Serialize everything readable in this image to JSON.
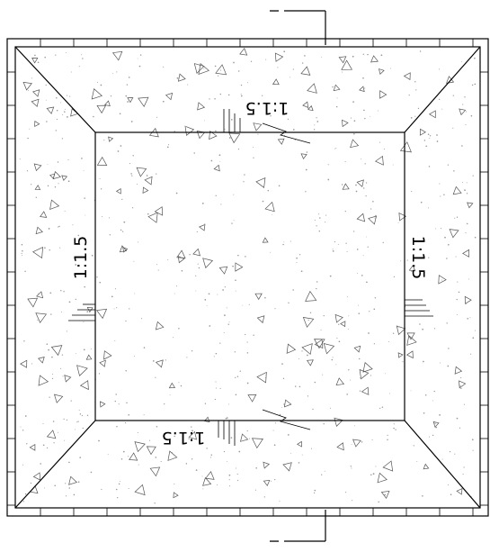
{
  "slope_labels": {
    "top": "1:1.5",
    "bottom": "1:1.5",
    "left": "1:1.5",
    "right": "1:1.5"
  },
  "section_marks": {
    "top": "I",
    "bottom": "I"
  }
}
